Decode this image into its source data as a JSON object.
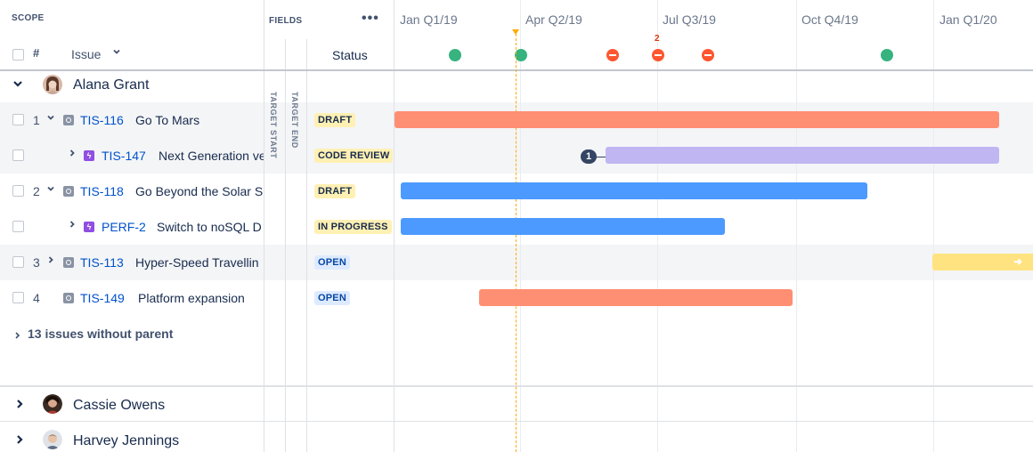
{
  "header": {
    "scope_label": "SCOPE",
    "fields_label": "FIELDS",
    "more_label": "•••",
    "hash_label": "#",
    "issue_label": "Issue",
    "status_label": "Status",
    "target_start_label": "TARGET START",
    "target_end_label": "TARGET END"
  },
  "quarters": [
    "Jan Q1/19",
    "Apr Q2/19",
    "Jul Q3/19",
    "Oct Q4/19",
    "Jan Q1/20"
  ],
  "release_markers": [
    {
      "status": "released",
      "color": "#36b37e"
    },
    {
      "status": "released",
      "color": "#36b37e"
    },
    {
      "status": "overdue",
      "color": "#ff5630"
    },
    {
      "status": "overdue",
      "color": "#ff5630",
      "count": "2"
    },
    {
      "status": "overdue",
      "color": "#ff5630"
    },
    {
      "status": "released",
      "color": "#36b37e"
    }
  ],
  "groups": [
    {
      "name": "Alana Grant",
      "expanded": true,
      "issues": [
        {
          "num": "1",
          "key": "TIS-116",
          "title": "Go To Mars",
          "status": "DRAFT",
          "status_color": "yellow",
          "bar_color": "#ff8f73",
          "type": "story"
        },
        {
          "num": "",
          "key": "TIS-147",
          "title": "Next Generation ve",
          "status": "CODE REVIEW",
          "status_color": "yellow",
          "bar_color": "#c0b6f2",
          "type": "sub",
          "dependency": "1"
        },
        {
          "num": "2",
          "key": "TIS-118",
          "title": "Go Beyond the Solar S",
          "status": "DRAFT",
          "status_color": "yellow",
          "bar_color": "#4c9aff",
          "type": "story"
        },
        {
          "num": "",
          "key": "PERF-2",
          "title": "Switch to noSQL D",
          "status": "IN PROGRESS",
          "status_color": "yellow",
          "bar_color": "#4c9aff",
          "type": "sub"
        },
        {
          "num": "3",
          "key": "TIS-113",
          "title": "Hyper-Speed Travellin",
          "status": "OPEN",
          "status_color": "blue",
          "bar_color": "#ffe380",
          "type": "story"
        },
        {
          "num": "4",
          "key": "TIS-149",
          "title": "Platform expansion",
          "status": "OPEN",
          "status_color": "blue",
          "bar_color": "#ff8f73",
          "type": "story"
        }
      ],
      "without_parent": "13 issues without parent"
    },
    {
      "name": "Cassie Owens",
      "expanded": false
    },
    {
      "name": "Harvey Jennings",
      "expanded": false
    }
  ],
  "icons": {
    "expanded": "chevron-down-icon",
    "collapsed": "chevron-right-icon",
    "story": "story-icon",
    "subtask": "subtask-icon",
    "released": "release-done-icon",
    "overdue": "release-overdue-icon",
    "today": "today-marker-icon"
  }
}
